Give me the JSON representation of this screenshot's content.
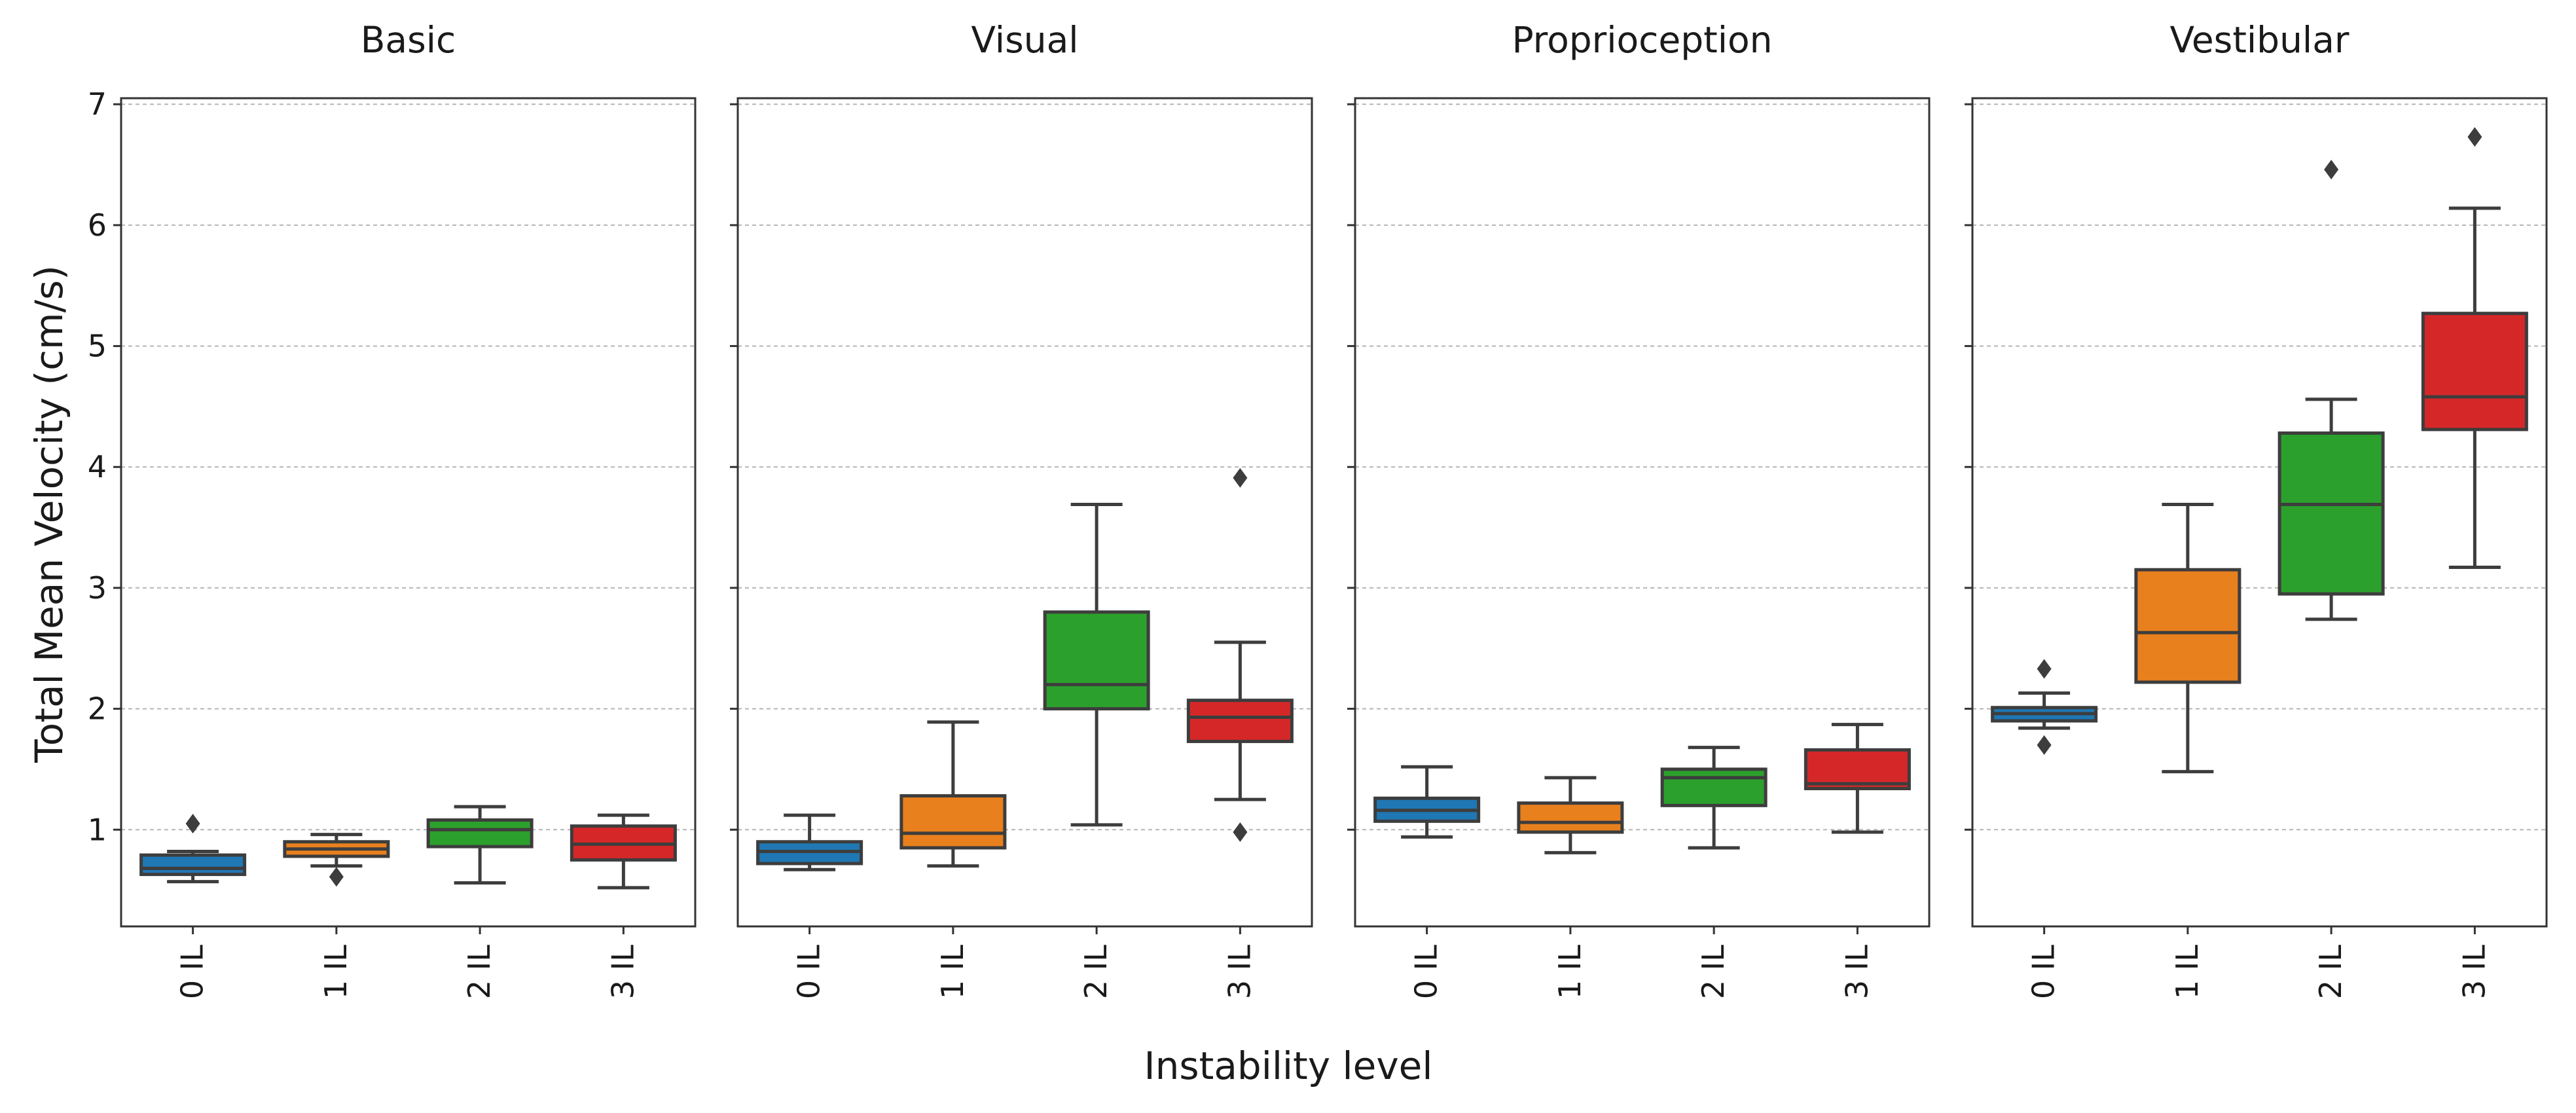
{
  "chart_data": {
    "type": "boxplot",
    "ylabel": "Total Mean Velocity (cm/s)",
    "xlabel": "Instability level",
    "ylim": [
      0.2,
      7.05
    ],
    "yticks": [
      1,
      2,
      3,
      4,
      5,
      6,
      7
    ],
    "categories": [
      "0 IL",
      "1 IL",
      "2 IL",
      "3 IL"
    ],
    "colors": [
      "#1f77b4",
      "#e8801d",
      "#2ca02c",
      "#d62728"
    ],
    "grid": "horizontal-dashed",
    "panels": [
      {
        "title": "Basic",
        "boxes": [
          {
            "category": "0 IL",
            "whisker_low": 0.57,
            "q1": 0.63,
            "median": 0.68,
            "q3": 0.79,
            "whisker_high": 0.82,
            "outliers": [
              1.05
            ]
          },
          {
            "category": "1 IL",
            "whisker_low": 0.7,
            "q1": 0.78,
            "median": 0.84,
            "q3": 0.9,
            "whisker_high": 0.96,
            "outliers": [
              0.61
            ]
          },
          {
            "category": "2 IL",
            "whisker_low": 0.56,
            "q1": 0.86,
            "median": 1.0,
            "q3": 1.08,
            "whisker_high": 1.19,
            "outliers": []
          },
          {
            "category": "3 IL",
            "whisker_low": 0.52,
            "q1": 0.75,
            "median": 0.88,
            "q3": 1.03,
            "whisker_high": 1.12,
            "outliers": []
          }
        ]
      },
      {
        "title": "Visual",
        "boxes": [
          {
            "category": "0 IL",
            "whisker_low": 0.67,
            "q1": 0.72,
            "median": 0.82,
            "q3": 0.9,
            "whisker_high": 1.12,
            "outliers": []
          },
          {
            "category": "1 IL",
            "whisker_low": 0.7,
            "q1": 0.85,
            "median": 0.97,
            "q3": 1.28,
            "whisker_high": 1.89,
            "outliers": []
          },
          {
            "category": "2 IL",
            "whisker_low": 1.04,
            "q1": 2.0,
            "median": 2.2,
            "q3": 2.8,
            "whisker_high": 3.69,
            "outliers": []
          },
          {
            "category": "3 IL",
            "whisker_low": 1.25,
            "q1": 1.73,
            "median": 1.93,
            "q3": 2.07,
            "whisker_high": 2.55,
            "outliers": [
              3.91,
              0.98
            ]
          }
        ]
      },
      {
        "title": "Proprioception",
        "boxes": [
          {
            "category": "0 IL",
            "whisker_low": 0.94,
            "q1": 1.07,
            "median": 1.16,
            "q3": 1.26,
            "whisker_high": 1.52,
            "outliers": []
          },
          {
            "category": "1 IL",
            "whisker_low": 0.81,
            "q1": 0.98,
            "median": 1.06,
            "q3": 1.22,
            "whisker_high": 1.43,
            "outliers": []
          },
          {
            "category": "2 IL",
            "whisker_low": 0.85,
            "q1": 1.2,
            "median": 1.43,
            "q3": 1.5,
            "whisker_high": 1.68,
            "outliers": []
          },
          {
            "category": "3 IL",
            "whisker_low": 0.98,
            "q1": 1.34,
            "median": 1.38,
            "q3": 1.66,
            "whisker_high": 1.87,
            "outliers": []
          }
        ]
      },
      {
        "title": "Vestibular",
        "boxes": [
          {
            "category": "0 IL",
            "whisker_low": 1.84,
            "q1": 1.9,
            "median": 1.96,
            "q3": 2.01,
            "whisker_high": 2.13,
            "outliers": [
              2.33,
              1.7
            ]
          },
          {
            "category": "1 IL",
            "whisker_low": 1.48,
            "q1": 2.22,
            "median": 2.63,
            "q3": 3.15,
            "whisker_high": 3.69,
            "outliers": []
          },
          {
            "category": "2 IL",
            "whisker_low": 2.74,
            "q1": 2.95,
            "median": 3.69,
            "q3": 4.28,
            "whisker_high": 4.56,
            "outliers": [
              6.46
            ]
          },
          {
            "category": "3 IL",
            "whisker_low": 3.17,
            "q1": 4.31,
            "median": 4.58,
            "q3": 5.27,
            "whisker_high": 6.14,
            "outliers": [
              6.73
            ]
          }
        ]
      }
    ]
  }
}
